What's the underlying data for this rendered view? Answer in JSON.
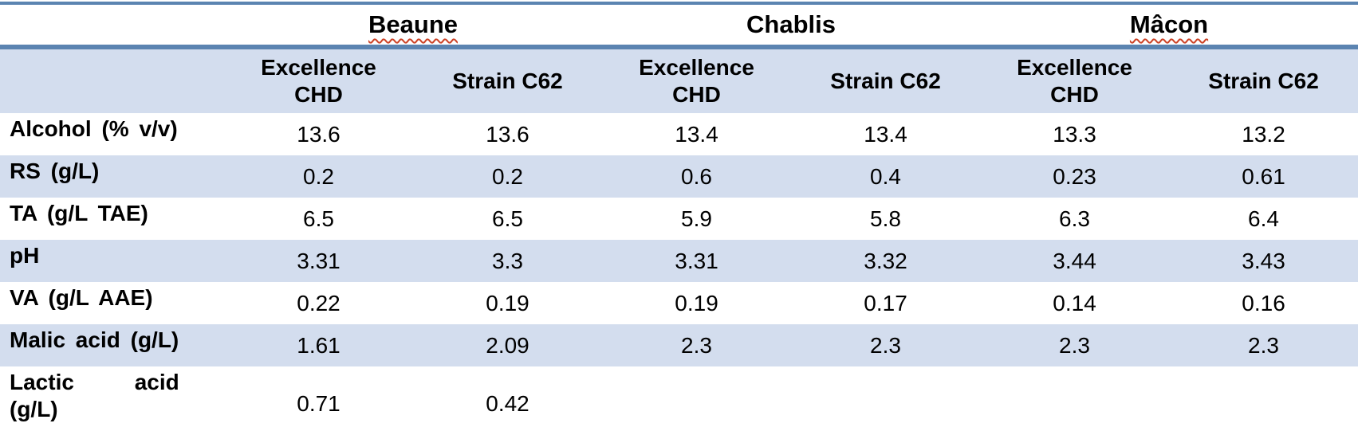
{
  "table": {
    "regions": [
      {
        "label": "Beaune",
        "spellcheck_underline": true
      },
      {
        "label": "Chablis",
        "spellcheck_underline": false
      },
      {
        "label": "Mâcon",
        "spellcheck_underline": true
      }
    ],
    "subheaders": [
      "Excellence CHD",
      "Strain C62",
      "Excellence CHD",
      "Strain C62",
      "Excellence CHD",
      "Strain C62"
    ],
    "rows": [
      {
        "label": "Alcohol (% v/v)",
        "values": [
          "13.6",
          "13.6",
          "13.4",
          "13.4",
          "13.3",
          "13.2"
        ]
      },
      {
        "label": "RS (g/L)",
        "values": [
          "0.2",
          "0.2",
          "0.6",
          "0.4",
          "0.23",
          "0.61"
        ]
      },
      {
        "label": "TA (g/L TAE)",
        "values": [
          "6.5",
          "6.5",
          "5.9",
          "5.8",
          "6.3",
          "6.4"
        ]
      },
      {
        "label": "pH",
        "values": [
          "3.31",
          "3.3",
          "3.31",
          "3.32",
          "3.44",
          "3.43"
        ]
      },
      {
        "label": "VA (g/L AAE)",
        "values": [
          "0.22",
          "0.19",
          "0.19",
          "0.17",
          "0.14",
          "0.16"
        ]
      },
      {
        "label": "Malic acid (g/L)",
        "values": [
          "1.61",
          "2.09",
          "2.3",
          "2.3",
          "2.3",
          "2.3"
        ]
      },
      {
        "label": "Lactic acid (g/L)",
        "values": [
          "0.71",
          "0.42",
          "",
          "",
          "",
          ""
        ]
      }
    ],
    "colors": {
      "band": "#d3ddee",
      "rule": "#5b84b1",
      "squiggle": "#cc4125"
    }
  }
}
